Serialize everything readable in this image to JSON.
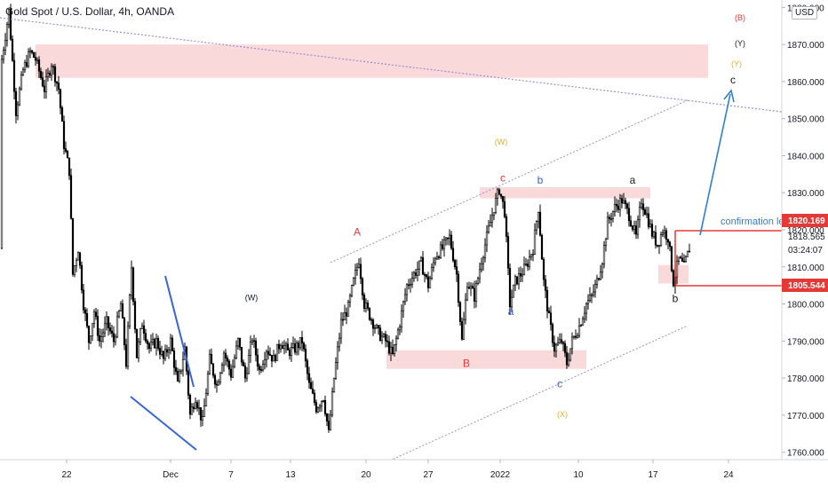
{
  "header": {
    "title": "Gold Spot / U.S. Dollar, 4h, OANDA",
    "currency": "USD"
  },
  "colors": {
    "up_candle": "#ffffff",
    "down_candle": "#000000",
    "zone_fill": "#f8c9cc",
    "blue_line": "#3a63d8",
    "arrow": "#2f7fd0",
    "red_level": "#e53935",
    "dotted_line": "#9a8fd0"
  },
  "chart_data": {
    "type": "candlestick",
    "instrument": "Gold Spot / U.S. Dollar",
    "timeframe": "4h",
    "source": "OANDA",
    "ylim": [
      1758,
      1882
    ],
    "y_ticks": [
      1760,
      1770,
      1780,
      1790,
      1800,
      1810,
      1820,
      1830,
      1840,
      1850,
      1860,
      1870,
      1880
    ],
    "y_tick_labels": [
      "1760.000",
      "1770.000",
      "1780.000",
      "1790.000",
      "1800.000",
      "1810.000",
      "1820.000",
      "1830.000",
      "1840.000",
      "1850.000",
      "1860.000",
      "1870.000",
      "1880.000"
    ],
    "x_ticks": [
      {
        "label": "22",
        "x": 75
      },
      {
        "label": "Dec",
        "x": 192
      },
      {
        "label": "7",
        "x": 260
      },
      {
        "label": "13",
        "x": 327
      },
      {
        "label": "20",
        "x": 412
      },
      {
        "label": "27",
        "x": 482
      },
      {
        "label": "2022",
        "x": 563
      },
      {
        "label": "10",
        "x": 651
      },
      {
        "label": "17",
        "x": 735
      },
      {
        "label": "24",
        "x": 820
      }
    ],
    "price_path": [
      [
        2,
        1866
      ],
      [
        10,
        1879
      ],
      [
        18,
        1852
      ],
      [
        26,
        1863
      ],
      [
        34,
        1868
      ],
      [
        40,
        1866
      ],
      [
        50,
        1858
      ],
      [
        58,
        1865
      ],
      [
        66,
        1858
      ],
      [
        72,
        1843
      ],
      [
        78,
        1836
      ],
      [
        82,
        1808
      ],
      [
        88,
        1815
      ],
      [
        94,
        1800
      ],
      [
        100,
        1790
      ],
      [
        106,
        1798
      ],
      [
        112,
        1790
      ],
      [
        120,
        1795
      ],
      [
        128,
        1790
      ],
      [
        136,
        1800
      ],
      [
        142,
        1784
      ],
      [
        148,
        1810
      ],
      [
        154,
        1786
      ],
      [
        160,
        1795
      ],
      [
        168,
        1788
      ],
      [
        176,
        1790
      ],
      [
        184,
        1785
      ],
      [
        192,
        1790
      ],
      [
        200,
        1778
      ],
      [
        208,
        1788
      ],
      [
        214,
        1770
      ],
      [
        220,
        1775
      ],
      [
        228,
        1768
      ],
      [
        236,
        1785
      ],
      [
        244,
        1778
      ],
      [
        252,
        1787
      ],
      [
        260,
        1781
      ],
      [
        268,
        1790
      ],
      [
        276,
        1780
      ],
      [
        284,
        1791
      ],
      [
        292,
        1782
      ],
      [
        300,
        1788
      ],
      [
        308,
        1785
      ],
      [
        316,
        1790
      ],
      [
        324,
        1787
      ],
      [
        332,
        1788
      ],
      [
        340,
        1790
      ],
      [
        348,
        1778
      ],
      [
        356,
        1772
      ],
      [
        364,
        1775
      ],
      [
        370,
        1765
      ],
      [
        376,
        1780
      ],
      [
        384,
        1795
      ],
      [
        392,
        1799
      ],
      [
        398,
        1806
      ],
      [
        404,
        1812
      ],
      [
        410,
        1800
      ],
      [
        418,
        1796
      ],
      [
        426,
        1792
      ],
      [
        434,
        1790
      ],
      [
        442,
        1786
      ],
      [
        450,
        1795
      ],
      [
        458,
        1805
      ],
      [
        466,
        1808
      ],
      [
        474,
        1811
      ],
      [
        482,
        1805
      ],
      [
        490,
        1813
      ],
      [
        498,
        1815
      ],
      [
        506,
        1818
      ],
      [
        514,
        1808
      ],
      [
        520,
        1790
      ],
      [
        526,
        1806
      ],
      [
        534,
        1802
      ],
      [
        542,
        1812
      ],
      [
        550,
        1820
      ],
      [
        556,
        1826
      ],
      [
        562,
        1831
      ],
      [
        568,
        1825
      ],
      [
        574,
        1800
      ],
      [
        580,
        1806
      ],
      [
        586,
        1808
      ],
      [
        592,
        1810
      ],
      [
        600,
        1815
      ],
      [
        606,
        1826
      ],
      [
        612,
        1806
      ],
      [
        618,
        1796
      ],
      [
        624,
        1788
      ],
      [
        632,
        1790
      ],
      [
        638,
        1784
      ],
      [
        644,
        1790
      ],
      [
        652,
        1794
      ],
      [
        660,
        1800
      ],
      [
        666,
        1802
      ],
      [
        672,
        1806
      ],
      [
        678,
        1812
      ],
      [
        684,
        1822
      ],
      [
        692,
        1826
      ],
      [
        700,
        1828
      ],
      [
        708,
        1824
      ],
      [
        716,
        1818
      ],
      [
        722,
        1828
      ],
      [
        728,
        1824
      ],
      [
        734,
        1819
      ],
      [
        740,
        1816
      ],
      [
        746,
        1820
      ],
      [
        752,
        1818
      ],
      [
        758,
        1806
      ],
      [
        764,
        1812
      ],
      [
        770,
        1810
      ],
      [
        776,
        1815
      ]
    ],
    "zones": [
      {
        "x1": 40,
        "x2": 797,
        "y_low": 1861,
        "y_high": 1870
      },
      {
        "x1": 540,
        "x2": 732,
        "y_low": 1828.5,
        "y_high": 1831.5
      },
      {
        "x1": 435,
        "x2": 660,
        "y_low": 1782.5,
        "y_high": 1787.5
      },
      {
        "x1": 741,
        "x2": 775,
        "y_low": 1805.5,
        "y_high": 1810.5
      }
    ],
    "wave_labels": [
      {
        "text": "(B)",
        "x": 833,
        "y": 1876.5,
        "color": "#e53935"
      },
      {
        "text": "(Y)",
        "x": 833,
        "y": 1869.5,
        "color": "#131722"
      },
      {
        "text": "(Y)",
        "x": 829,
        "y": 1864,
        "color": "#e3b02a"
      },
      {
        "text": "c",
        "x": 825,
        "y": 1859.5,
        "color": "#131722"
      },
      {
        "text": "(W)",
        "x": 564,
        "y": 1843,
        "color": "#e3b02a"
      },
      {
        "text": "c",
        "x": 566,
        "y": 1833,
        "color": "#e53935"
      },
      {
        "text": "b",
        "x": 608,
        "y": 1832.5,
        "color": "#3a63d8"
      },
      {
        "text": "a",
        "x": 712,
        "y": 1832.5,
        "color": "#131722"
      },
      {
        "text": "A",
        "x": 402,
        "y": 1818.5,
        "color": "#e53935"
      },
      {
        "text": "(W)",
        "x": 283,
        "y": 1801,
        "color": "#131722"
      },
      {
        "text": "a",
        "x": 575,
        "y": 1797,
        "color": "#3a63d8"
      },
      {
        "text": "b",
        "x": 760,
        "y": 1800.5,
        "color": "#131722"
      },
      {
        "text": "B",
        "x": 525,
        "y": 1783,
        "color": "#e53935"
      },
      {
        "text": "c",
        "x": 630,
        "y": 1777.5,
        "color": "#3a63d8"
      },
      {
        "text": "(X)",
        "x": 633,
        "y": 1769.5,
        "color": "#e3b02a"
      }
    ],
    "annotations": {
      "confirmation_text": "confirmation le",
      "confirmation_level": "1820.169",
      "current_price": "1818.565",
      "countdown": "03:24:07",
      "support_level": "1805.544"
    }
  }
}
